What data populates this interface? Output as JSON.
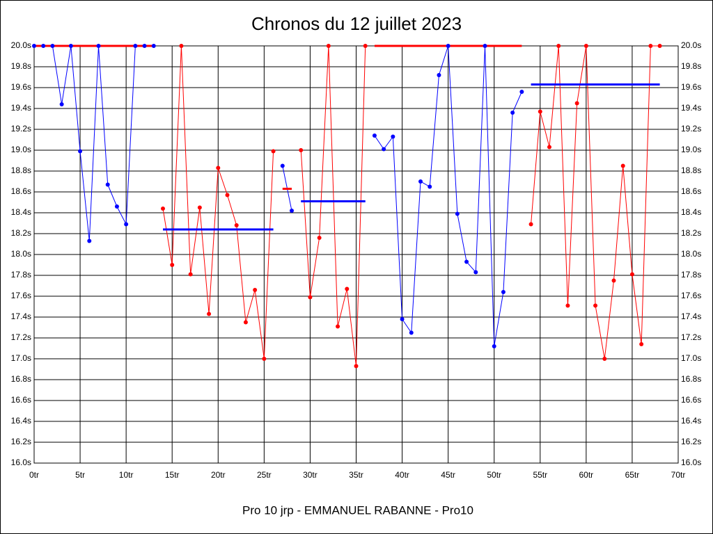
{
  "chart_data": {
    "type": "line",
    "title": "Chronos du 12 juillet 2023",
    "x_label": "Pro 10 jrp - EMMANUEL RABANNE - Pro10",
    "x": [
      0,
      1,
      2,
      3,
      4,
      5,
      6,
      7,
      8,
      9,
      10,
      11,
      12,
      13,
      14,
      15,
      16,
      17,
      18,
      19,
      20,
      21,
      22,
      23,
      24,
      25,
      26,
      27,
      28,
      29,
      30,
      31,
      32,
      33,
      34,
      35,
      36,
      37,
      38,
      39,
      40,
      41,
      42,
      43,
      44,
      45,
      46,
      47,
      48,
      49,
      50,
      51,
      52,
      53,
      54,
      55,
      56,
      57,
      58,
      59,
      60,
      61,
      62,
      63,
      64,
      65,
      66,
      67,
      68
    ],
    "series": [
      {
        "color": "#0000ff",
        "values": [
          20.0,
          20.0,
          20.0,
          19.44,
          20.0,
          18.99,
          18.13,
          20.0,
          18.67,
          18.46,
          18.29,
          20.0,
          20.0,
          20.0,
          null,
          null,
          null,
          null,
          null,
          null,
          null,
          null,
          null,
          null,
          null,
          null,
          null,
          18.85,
          18.42,
          null,
          null,
          null,
          null,
          null,
          null,
          null,
          null,
          19.14,
          19.01,
          19.13,
          17.38,
          17.25,
          18.7,
          18.65,
          19.72,
          20.0,
          18.39,
          17.93,
          17.83,
          20.0,
          17.12,
          17.64,
          19.36,
          19.56,
          null,
          null,
          null,
          null,
          null,
          null,
          null,
          null,
          null,
          null,
          null,
          null,
          null,
          null,
          null
        ]
      },
      {
        "color": "#ff0000",
        "values": [
          null,
          null,
          null,
          null,
          null,
          null,
          null,
          null,
          null,
          null,
          null,
          null,
          null,
          null,
          18.44,
          17.9,
          20.0,
          17.81,
          18.45,
          17.43,
          18.83,
          18.57,
          18.28,
          17.35,
          17.66,
          17.0,
          18.99,
          null,
          null,
          19.0,
          17.59,
          18.16,
          20.0,
          17.31,
          17.67,
          16.93,
          20.0,
          null,
          null,
          null,
          null,
          null,
          null,
          null,
          null,
          null,
          null,
          null,
          null,
          null,
          null,
          null,
          null,
          null,
          18.29,
          19.37,
          19.03,
          20.0,
          17.51,
          19.45,
          20.0,
          17.51,
          17.0,
          17.75,
          18.85,
          17.81,
          17.14,
          20.0,
          20.0
        ]
      }
    ],
    "averages": [
      {
        "color": "#ff0000",
        "x": [
          0,
          13
        ],
        "value": 20.0
      },
      {
        "color": "#0000ff",
        "x": [
          14,
          26
        ],
        "value": 18.24
      },
      {
        "color": "#ff0000",
        "x": [
          27,
          28
        ],
        "value": 18.63
      },
      {
        "color": "#0000ff",
        "x": [
          29,
          36
        ],
        "value": 18.51
      },
      {
        "color": "#ff0000",
        "x": [
          37,
          53
        ],
        "value": 20.0
      },
      {
        "color": "#0000ff",
        "x": [
          54,
          68
        ],
        "value": 19.63
      }
    ],
    "xlim": [
      0,
      70
    ],
    "ylim": [
      16.0,
      20.0
    ],
    "xticks": [
      {
        "value": 0,
        "label": "0tr"
      },
      {
        "value": 5,
        "label": "5tr"
      },
      {
        "value": 10,
        "label": "10tr"
      },
      {
        "value": 15,
        "label": "15tr"
      },
      {
        "value": 20,
        "label": "20tr"
      },
      {
        "value": 25,
        "label": "25tr"
      },
      {
        "value": 30,
        "label": "30tr"
      },
      {
        "value": 35,
        "label": "35tr"
      },
      {
        "value": 40,
        "label": "40tr"
      },
      {
        "value": 45,
        "label": "45tr"
      },
      {
        "value": 50,
        "label": "50tr"
      },
      {
        "value": 55,
        "label": "55tr"
      },
      {
        "value": 60,
        "label": "60tr"
      },
      {
        "value": 65,
        "label": "65tr"
      },
      {
        "value": 70,
        "label": "70tr"
      }
    ],
    "yticks": [
      {
        "value": 16.0,
        "label": "16.0s"
      },
      {
        "value": 16.2,
        "label": "16.2s"
      },
      {
        "value": 16.4,
        "label": "16.4s"
      },
      {
        "value": 16.6,
        "label": "16.6s"
      },
      {
        "value": 16.8,
        "label": "16.8s"
      },
      {
        "value": 17.0,
        "label": "17.0s"
      },
      {
        "value": 17.2,
        "label": "17.2s"
      },
      {
        "value": 17.4,
        "label": "17.4s"
      },
      {
        "value": 17.6,
        "label": "17.6s"
      },
      {
        "value": 17.8,
        "label": "17.8s"
      },
      {
        "value": 18.0,
        "label": "18.0s"
      },
      {
        "value": 18.2,
        "label": "18.2s"
      },
      {
        "value": 18.4,
        "label": "18.4s"
      },
      {
        "value": 18.6,
        "label": "18.6s"
      },
      {
        "value": 18.8,
        "label": "18.8s"
      },
      {
        "value": 19.0,
        "label": "19.0s"
      },
      {
        "value": 19.2,
        "label": "19.2s"
      },
      {
        "value": 19.4,
        "label": "19.4s"
      },
      {
        "value": 19.6,
        "label": "19.6s"
      },
      {
        "value": 19.8,
        "label": "19.8s"
      },
      {
        "value": 20.0,
        "label": "20.0s"
      }
    ],
    "grid": true
  }
}
